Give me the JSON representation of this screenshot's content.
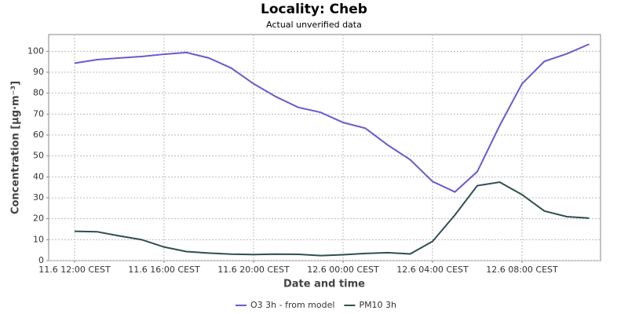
{
  "chart_data": {
    "type": "line",
    "title": "Locality: Cheb",
    "subtitle": "Actual unverified data",
    "x_label": "Date and time",
    "y_label": "Concentration [µg·m⁻³]",
    "categories": [
      "11.6 12:00 CEST",
      null,
      null,
      null,
      "11.6 16:00 CEST",
      null,
      null,
      null,
      "11.6 20:00 CEST",
      null,
      null,
      null,
      "12.6 00:00 CEST",
      null,
      null,
      null,
      "12.6 04:00 CEST",
      null,
      null,
      null,
      "12.6 08:00 CEST",
      null,
      null,
      null
    ],
    "series": [
      {
        "name": "O3 3h - from model",
        "color": "#6a5acd",
        "values": [
          94.3,
          96,
          96.8,
          97.5,
          98.6,
          99.4,
          96.8,
          92,
          84.5,
          78.3,
          73.2,
          70.8,
          66,
          63.2,
          55.2,
          48.2,
          37.8,
          32.8,
          42.5,
          64.5,
          84.5,
          95.2,
          98.8,
          103.4
        ]
      },
      {
        "name": "PM10 3h",
        "color": "#2f4f4f",
        "values": [
          14,
          13.8,
          11.8,
          10,
          6.5,
          4.3,
          3.6,
          3.1,
          2.9,
          3.1,
          3,
          2.4,
          2.8,
          3.4,
          3.8,
          3.2,
          9.2,
          21.8,
          35.8,
          37.5,
          31.5,
          23.7,
          21,
          20.3
        ]
      }
    ],
    "ylim": [
      0,
      108
    ],
    "yticks": [
      0,
      10,
      20,
      30,
      40,
      50,
      60,
      70,
      80,
      90,
      100
    ],
    "grid": true,
    "legend": "bottom"
  }
}
